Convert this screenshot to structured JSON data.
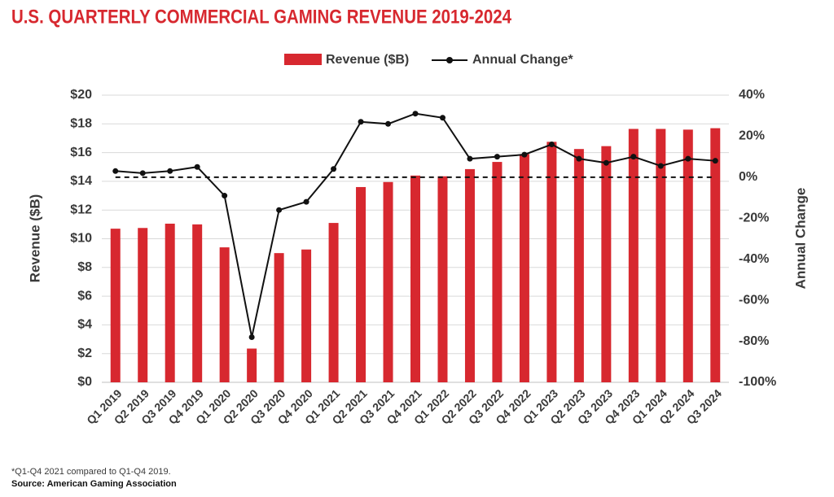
{
  "chart_data": {
    "type": "bar_line",
    "title": "U.S. QUARTERLY COMMERCIAL GAMING REVENUE 2019-2024",
    "categories": [
      "Q1 2019",
      "Q2 2019",
      "Q3 2019",
      "Q4 2019",
      "Q1 2020",
      "Q2 2020",
      "Q3 2020",
      "Q4 2020",
      "Q1 2021",
      "Q2 2021",
      "Q3 2021",
      "Q4 2021",
      "Q1 2022",
      "Q2 2022",
      "Q3 2022",
      "Q4 2022",
      "Q1 2023",
      "Q2 2023",
      "Q3 2023",
      "Q4 2023",
      "Q1 2024",
      "Q2 2024",
      "Q3 2024"
    ],
    "series": [
      {
        "name": "Revenue ($B)",
        "color": "#d7282f",
        "values": [
          10.7,
          10.75,
          11.05,
          11.0,
          9.4,
          2.35,
          9.0,
          9.25,
          11.1,
          13.6,
          13.95,
          14.4,
          14.35,
          14.85,
          15.35,
          15.9,
          16.75,
          16.25,
          16.45,
          17.65,
          17.65,
          17.6,
          17.7
        ]
      },
      {
        "name": "Annual Change*",
        "color": "#111111",
        "axis": "y2",
        "values": [
          3,
          2,
          3,
          5,
          -9,
          -78,
          -16,
          -12,
          4,
          27,
          26,
          31,
          29,
          9,
          10,
          11,
          16,
          9,
          7,
          10,
          5.5,
          9,
          8
        ]
      }
    ],
    "ylabel": "Revenue ($B)",
    "y2label": "Annual Change",
    "ylim": [
      0,
      20
    ],
    "yticks": [
      {
        "value": 0,
        "label": "$0"
      },
      {
        "value": 2,
        "label": "$2"
      },
      {
        "value": 4,
        "label": "$4"
      },
      {
        "value": 6,
        "label": "$6"
      },
      {
        "value": 8,
        "label": "$8"
      },
      {
        "value": 10,
        "label": "$10"
      },
      {
        "value": 12,
        "label": "$12"
      },
      {
        "value": 14,
        "label": "$14"
      },
      {
        "value": 16,
        "label": "$16"
      },
      {
        "value": 18,
        "label": "$18"
      },
      {
        "value": 20,
        "label": "$20"
      }
    ],
    "y2lim": [
      -100,
      40
    ],
    "y2ticks": [
      {
        "value": -100,
        "label": "-100%"
      },
      {
        "value": -80,
        "label": "-80%"
      },
      {
        "value": -60,
        "label": "-60%"
      },
      {
        "value": -40,
        "label": "-40%"
      },
      {
        "value": -20,
        "label": "-20%"
      },
      {
        "value": 0,
        "label": "0%"
      },
      {
        "value": 20,
        "label": "20%"
      },
      {
        "value": 40,
        "label": "40%"
      }
    ],
    "reference_line": 0,
    "grid": true,
    "legend": "top",
    "footnote": "*Q1-Q4 2021 compared to Q1-Q4 2019.",
    "source": "Source: American Gaming Association"
  }
}
